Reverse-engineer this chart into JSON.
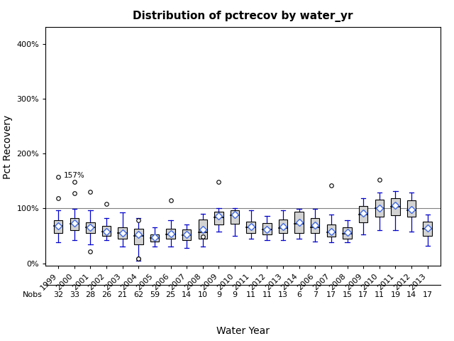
{
  "title": "Distribution of pctrecov by water_yr",
  "xlabel": "Water Year",
  "ylabel": "Pct Recovery",
  "ylim": [
    -5,
    430
  ],
  "yticks": [
    0,
    100,
    200,
    300,
    400
  ],
  "ytick_labels": [
    "0%",
    "100%",
    "200%",
    "300%",
    "400%"
  ],
  "reference_line": 100,
  "years": [
    "1999",
    "2000",
    "2001",
    "2002",
    "2003",
    "2004",
    "2005",
    "2006",
    "2007",
    "2008",
    "2009",
    "2010",
    "2011",
    "2012",
    "2013",
    "2014",
    "2006",
    "2007",
    "2008",
    "2009",
    "2010",
    "2011",
    "2012",
    "2013"
  ],
  "nobs": [
    32,
    33,
    28,
    26,
    21,
    62,
    59,
    25,
    14,
    10,
    9,
    9,
    11,
    11,
    13,
    6,
    7,
    17,
    15,
    17,
    11,
    19,
    14,
    17
  ],
  "box_data": {
    "whislo": [
      38,
      42,
      35,
      42,
      30,
      5,
      30,
      30,
      28,
      30,
      58,
      50,
      45,
      42,
      42,
      45,
      40,
      38,
      38,
      52,
      60,
      60,
      58,
      32
    ],
    "q1": [
      55,
      60,
      55,
      50,
      45,
      35,
      40,
      45,
      42,
      45,
      70,
      72,
      55,
      52,
      55,
      55,
      55,
      48,
      45,
      75,
      85,
      88,
      85,
      50
    ],
    "med": [
      68,
      72,
      65,
      58,
      55,
      50,
      46,
      53,
      51,
      57,
      83,
      88,
      66,
      61,
      64,
      72,
      66,
      56,
      54,
      89,
      100,
      103,
      96,
      63
    ],
    "mean": [
      68,
      73,
      65,
      58,
      55,
      52,
      47,
      54,
      53,
      62,
      86,
      89,
      67,
      62,
      67,
      74,
      69,
      58,
      56,
      91,
      100,
      106,
      98,
      64
    ],
    "q3": [
      78,
      82,
      75,
      68,
      65,
      63,
      53,
      63,
      61,
      80,
      94,
      96,
      76,
      73,
      80,
      94,
      82,
      71,
      66,
      104,
      116,
      119,
      114,
      76
    ],
    "whishi": [
      96,
      99,
      96,
      82,
      92,
      82,
      66,
      79,
      71,
      90,
      100,
      100,
      96,
      86,
      96,
      99,
      99,
      89,
      79,
      119,
      129,
      131,
      129,
      89
    ]
  },
  "outliers": {
    "0": [
      157,
      118
    ],
    "1": [
      148,
      128
    ],
    "2": [
      130,
      22
    ],
    "3": [
      108
    ],
    "4": [],
    "5": [
      8,
      8,
      78
    ],
    "6": [],
    "7": [
      115
    ],
    "8": [],
    "9": [
      48
    ],
    "10": [
      148
    ],
    "11": [],
    "12": [],
    "13": [],
    "14": [],
    "15": [],
    "16": [],
    "17": [
      142
    ],
    "18": [],
    "19": [],
    "20": [
      152
    ],
    "21": [],
    "22": [],
    "23": []
  },
  "special_label": {
    "index": 0,
    "text": "157%",
    "value": 157
  },
  "box_facecolor": "#d3d3d3",
  "box_edgecolor": "#000000",
  "median_color": "#000000",
  "whisker_color": "#0000cd",
  "flier_marker_color": "#000000",
  "mean_marker_color": "#4169e1",
  "mean_marker": "D",
  "background_color": "#ffffff"
}
